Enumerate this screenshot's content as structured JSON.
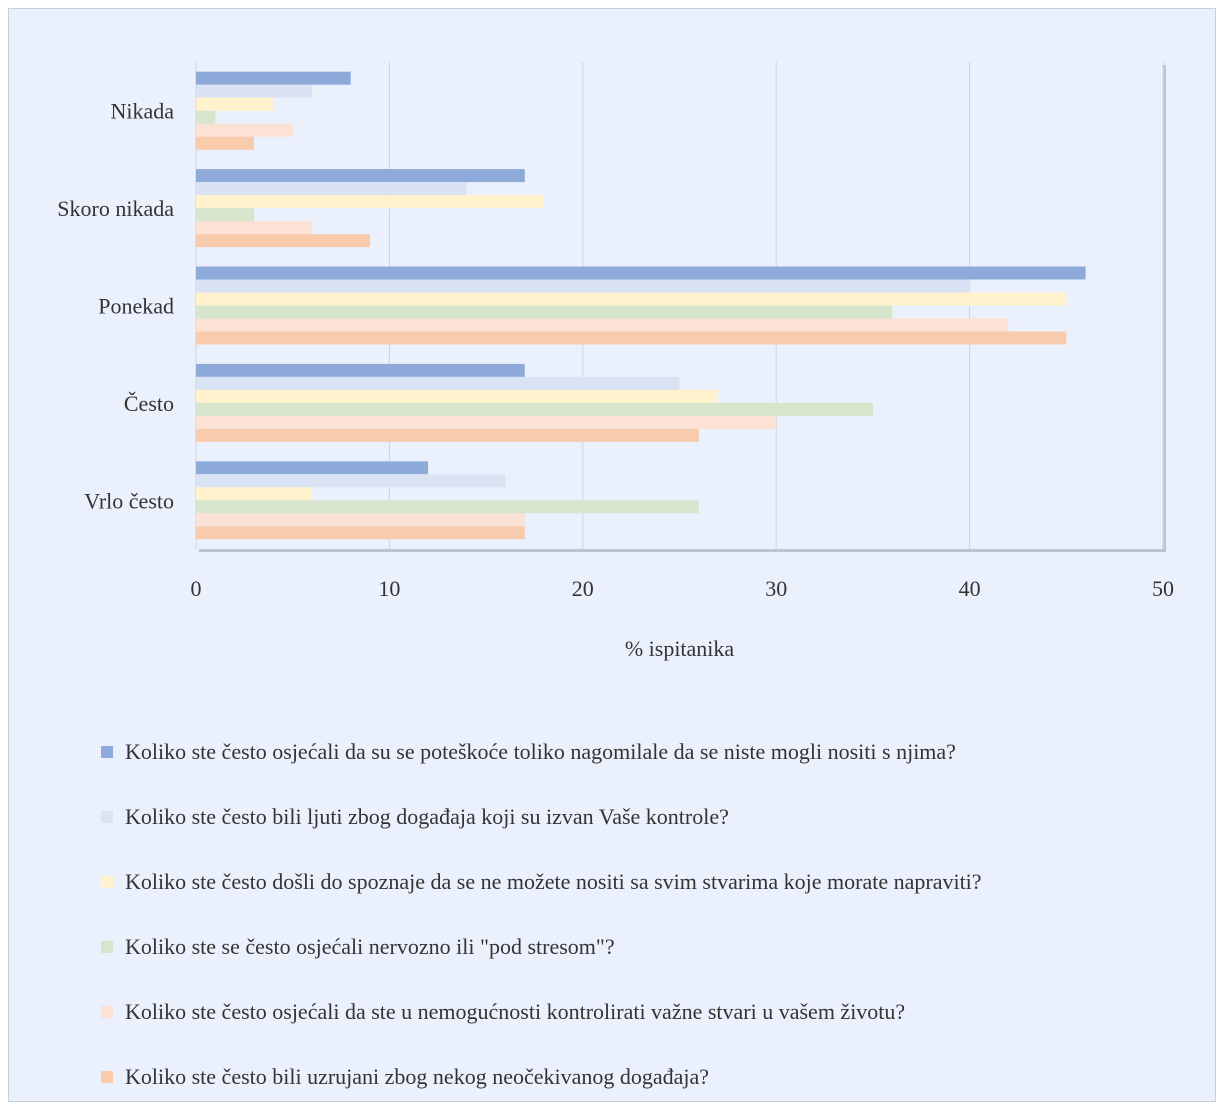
{
  "chart_data": {
    "type": "bar",
    "orientation": "horizontal",
    "categories": [
      "Nikada",
      "Skoro nikada",
      "Ponekad",
      "Često",
      "Vrlo često"
    ],
    "xlabel": "% ispitanika",
    "xlim": [
      0,
      50
    ],
    "xticks": [
      0,
      10,
      20,
      30,
      40,
      50
    ],
    "grid": true,
    "legend_position": "bottom",
    "series": [
      {
        "name": "Koliko ste često osjećali da su se poteškoće toliko nagomilale da se niste mogli nositi s njima?",
        "color": "#8eaadb",
        "values": [
          8,
          17,
          46,
          17,
          12
        ]
      },
      {
        "name": "Koliko ste često bili ljuti zbog događaja koji su izvan Vaše kontrole?",
        "color": "#dae3f3",
        "values": [
          6,
          14,
          40,
          25,
          16
        ]
      },
      {
        "name": "Koliko ste često došli do spoznaje da se ne možete nositi sa svim stvarima koje morate napraviti?",
        "color": "#fff2cc",
        "values": [
          4,
          18,
          45,
          27,
          6
        ]
      },
      {
        "name": "Koliko ste se često osjećali nervozno ili \"pod stresom\"?",
        "color": "#d6e5cc",
        "values": [
          1,
          3,
          36,
          35,
          26
        ]
      },
      {
        "name": "Koliko ste često osjećali da ste u nemogućnosti kontrolirati važne stvari u vašem životu?",
        "color": "#fbe2d5",
        "values": [
          5,
          6,
          42,
          30,
          17
        ]
      },
      {
        "name": "Koliko ste često bili uzrujani zbog nekog neočekivanog događaja?",
        "color": "#f8cbad",
        "values": [
          3,
          9,
          45,
          26,
          17
        ]
      }
    ]
  }
}
